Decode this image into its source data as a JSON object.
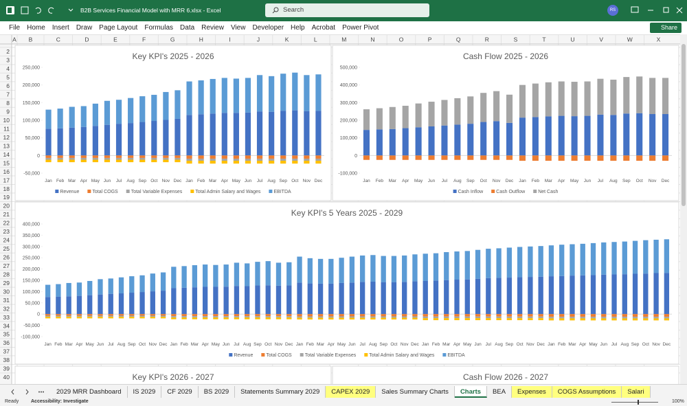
{
  "window": {
    "title": "B2B Services Financial Model with MRR 6.xlsx  -  Excel",
    "search": "Search",
    "user": "RS"
  },
  "ribbon": {
    "tabs": [
      "File",
      "Home",
      "Insert",
      "Draw",
      "Page Layout",
      "Formulas",
      "Data",
      "Review",
      "View",
      "Developer",
      "Help",
      "Acrobat",
      "Power Pivot"
    ],
    "share": "Share"
  },
  "sheet": {
    "columns": [
      "A",
      "B",
      "C",
      "D",
      "E",
      "F",
      "G",
      "H",
      "I",
      "J",
      "K",
      "L",
      "M",
      "N",
      "O",
      "P",
      "Q",
      "R",
      "S",
      "T",
      "U",
      "V",
      "W",
      "X"
    ],
    "rows": [
      2,
      3,
      4,
      5,
      6,
      7,
      8,
      9,
      10,
      11,
      12,
      13,
      14,
      15,
      16,
      17,
      18,
      19,
      20,
      21,
      22,
      23,
      24,
      25,
      26,
      27,
      28,
      29,
      30,
      31,
      32,
      33,
      34,
      35,
      36,
      37,
      38,
      39,
      40
    ],
    "charts": [
      {
        "type": "bar",
        "stacked": true,
        "title": "Key KPI's 2025 - 2026",
        "categories": [
          "Jan",
          "Feb",
          "Mar",
          "Apr",
          "May",
          "Jun",
          "Jul",
          "Aug",
          "Sep",
          "Oct",
          "Nov",
          "Dec",
          "Jan",
          "Feb",
          "Mar",
          "Apr",
          "May",
          "Jun",
          "Jul",
          "Aug",
          "Sep",
          "Oct",
          "Nov",
          "Dec"
        ],
        "series": [
          {
            "name": "Revenue",
            "color": "#4472c4",
            "values": [
              76000,
              77000,
              79000,
              81000,
              84000,
              87000,
              90000,
              92000,
              95000,
              98000,
              101000,
              104000,
              115000,
              117000,
              119000,
              121000,
              121000,
              122000,
              125000,
              124000,
              127000,
              128000,
              126000,
              127000
            ]
          },
          {
            "name": "Total COGS",
            "color": "#ed7d31",
            "values": [
              -7000,
              -7000,
              -7000,
              -7000,
              -7000,
              -7000,
              -7000,
              -7000,
              -7000,
              -7000,
              -7000,
              -7000,
              -9000,
              -9000,
              -9000,
              -9000,
              -9000,
              -9000,
              -9000,
              -9000,
              -9000,
              -9000,
              -9000,
              -9000
            ]
          },
          {
            "name": "Total Variable Expenses",
            "color": "#a5a5a5",
            "values": [
              -5000,
              -5000,
              -5000,
              -5000,
              -5000,
              -5000,
              -5000,
              -5000,
              -5000,
              -5000,
              -5000,
              -5000,
              -6000,
              -6000,
              -6000,
              -6000,
              -6000,
              -6000,
              -6000,
              -6000,
              -6000,
              -6000,
              -6000,
              -6000
            ]
          },
          {
            "name": "Total Admin Salary and Wages",
            "color": "#ffc000",
            "values": [
              -7000,
              -7000,
              -7000,
              -7000,
              -7000,
              -7000,
              -7000,
              -7000,
              -7000,
              -7000,
              -7000,
              -7000,
              -8000,
              -8000,
              -8000,
              -8000,
              -8000,
              -8000,
              -8000,
              -8000,
              -8000,
              -8000,
              -8000,
              -8000
            ]
          },
          {
            "name": "EBITDA",
            "color": "#5b9bd5",
            "values": [
              54000,
              56000,
              59000,
              59000,
              63000,
              68000,
              68000,
              71000,
              73000,
              74000,
              79000,
              81000,
              95000,
              96000,
              98000,
              99000,
              97000,
              98000,
              103000,
              101000,
              105000,
              107000,
              102000,
              103000
            ]
          }
        ],
        "ylim": [
          -50000,
          250000
        ],
        "yticks": [
          {
            "value": -50000,
            "label": "-50,000"
          },
          0,
          {
            "value": 50000,
            "label": "50,000"
          },
          {
            "value": 100000,
            "label": "100,000"
          },
          {
            "value": 150000,
            "label": "150,000"
          },
          {
            "value": 200000,
            "label": "200,000"
          },
          {
            "value": 250000,
            "label": "250,000"
          }
        ],
        "grid": false,
        "legend": "bottom"
      },
      {
        "type": "bar",
        "stacked": true,
        "title": "Cash Flow 2025 - 2026",
        "categories": [
          "Jan",
          "Feb",
          "Mar",
          "Apr",
          "May",
          "Jun",
          "Jul",
          "Aug",
          "Sep",
          "Oct",
          "Nov",
          "Dec",
          "Jan",
          "Feb",
          "Mar",
          "Apr",
          "May",
          "Jun",
          "Jul",
          "Aug",
          "Sep",
          "Oct",
          "Nov",
          "Dec"
        ],
        "series": [
          {
            "name": "Cash Inflow",
            "color": "#4472c4",
            "values": [
              145000,
              148000,
              150000,
              155000,
              160000,
              165000,
              170000,
              175000,
              180000,
              190000,
              195000,
              185000,
              215000,
              218000,
              222000,
              225000,
              223000,
              225000,
              232000,
              230000,
              238000,
              240000,
              235000,
              235000
            ]
          },
          {
            "name": "Cash Outflow",
            "color": "#ed7d31",
            "values": [
              -25000,
              -25000,
              -25000,
              -25000,
              -25000,
              -25000,
              -25000,
              -25000,
              -25000,
              -25000,
              -25000,
              -25000,
              -30000,
              -30000,
              -30000,
              -30000,
              -30000,
              -30000,
              -30000,
              -30000,
              -30000,
              -30000,
              -30000,
              -30000
            ]
          },
          {
            "name": "Net Cash",
            "color": "#a5a5a5",
            "values": [
              117000,
              120000,
              125000,
              127000,
              135000,
              140000,
              145000,
              150000,
              155000,
              165000,
              170000,
              160000,
              185000,
              190000,
              193000,
              195000,
              195000,
              195000,
              203000,
              200000,
              207000,
              208000,
              205000,
              205000
            ]
          }
        ],
        "ylim": [
          -100000,
          500000
        ],
        "yticks": [
          {
            "value": -100000,
            "label": "-100,000"
          },
          0,
          {
            "value": 100000,
            "label": "100,000"
          },
          {
            "value": 200000,
            "label": "200,000"
          },
          {
            "value": 300000,
            "label": "300,000"
          },
          {
            "value": 400000,
            "label": "400,000"
          },
          {
            "value": 500000,
            "label": "500,000"
          }
        ],
        "grid": false,
        "legend": "bottom"
      },
      {
        "type": "bar",
        "stacked": true,
        "title": "Key KPI's 5 Years 2025 - 2029",
        "categories": [
          "Jan",
          "Feb",
          "Mar",
          "Apr",
          "May",
          "Jun",
          "Jul",
          "Aug",
          "Sep",
          "Oct",
          "Nov",
          "Dec",
          "Jan",
          "Feb",
          "Mar",
          "Apr",
          "May",
          "Jun",
          "Jul",
          "Aug",
          "Sep",
          "Oct",
          "Nov",
          "Dec",
          "Jan",
          "Feb",
          "Mar",
          "Apr",
          "May",
          "Jun",
          "Jul",
          "Aug",
          "Sep",
          "Oct",
          "Nov",
          "Dec",
          "Jan",
          "Feb",
          "Mar",
          "Apr",
          "May",
          "Jun",
          "Jul",
          "Aug",
          "Sep",
          "Oct",
          "Nov",
          "Dec",
          "Jan",
          "Feb",
          "Mar",
          "Apr",
          "May",
          "Jun",
          "Jul",
          "Aug",
          "Sep",
          "Oct",
          "Nov",
          "Dec"
        ],
        "series": [
          {
            "name": "Revenue",
            "color": "#4472c4",
            "values": [
              76000,
              77000,
              79000,
              81000,
              84000,
              87000,
              90000,
              92000,
              95000,
              98000,
              101000,
              104000,
              115000,
              117000,
              119000,
              121000,
              121000,
              122000,
              125000,
              124000,
              127000,
              128000,
              126000,
              127000,
              140000,
              136000,
              135000,
              135000,
              138000,
              140000,
              143000,
              144000,
              142000,
              142000,
              143000,
              146000,
              147000,
              149000,
              151000,
              153000,
              154000,
              157000,
              160000,
              161000,
              162000,
              164000,
              165000,
              166000,
              168000,
              169000,
              171000,
              172000,
              173000,
              175000,
              176000,
              177000,
              179000,
              180000,
              182000,
              183000
            ]
          },
          {
            "name": "Total COGS",
            "color": "#ed7d31",
            "values": [
              -7000,
              -7000,
              -7000,
              -7000,
              -7000,
              -7000,
              -7000,
              -7000,
              -7000,
              -7000,
              -7000,
              -7000,
              -9000,
              -9000,
              -9000,
              -9000,
              -9000,
              -9000,
              -9000,
              -9000,
              -9000,
              -9000,
              -9000,
              -9000,
              -10000,
              -10000,
              -10000,
              -10000,
              -10000,
              -10000,
              -10000,
              -10000,
              -10000,
              -10000,
              -10000,
              -10000,
              -11000,
              -11000,
              -11000,
              -11000,
              -11000,
              -11000,
              -11000,
              -11000,
              -11000,
              -11000,
              -11000,
              -11000,
              -12000,
              -12000,
              -12000,
              -12000,
              -12000,
              -12000,
              -12000,
              -12000,
              -12000,
              -12000,
              -12000,
              -12000
            ]
          },
          {
            "name": "Total Variable Expenses",
            "color": "#a5a5a5",
            "values": [
              -5000,
              -5000,
              -5000,
              -5000,
              -5000,
              -5000,
              -5000,
              -5000,
              -5000,
              -5000,
              -5000,
              -5000,
              -6000,
              -6000,
              -6000,
              -6000,
              -6000,
              -6000,
              -6000,
              -6000,
              -6000,
              -6000,
              -6000,
              -6000,
              -6000,
              -6000,
              -6000,
              -6000,
              -6000,
              -6000,
              -6000,
              -6000,
              -6000,
              -6000,
              -6000,
              -6000,
              -7000,
              -7000,
              -7000,
              -7000,
              -7000,
              -7000,
              -7000,
              -7000,
              -7000,
              -7000,
              -7000,
              -7000,
              -7000,
              -7000,
              -7000,
              -7000,
              -7000,
              -7000,
              -7000,
              -7000,
              -7000,
              -7000,
              -7000,
              -7000
            ]
          },
          {
            "name": "Total Admin Salary and Wages",
            "color": "#ffc000",
            "values": [
              -7000,
              -7000,
              -7000,
              -7000,
              -7000,
              -7000,
              -7000,
              -7000,
              -7000,
              -7000,
              -7000,
              -7000,
              -8000,
              -8000,
              -8000,
              -8000,
              -8000,
              -8000,
              -8000,
              -8000,
              -8000,
              -8000,
              -8000,
              -8000,
              -8000,
              -8000,
              -8000,
              -8000,
              -8000,
              -8000,
              -8000,
              -8000,
              -8000,
              -8000,
              -8000,
              -8000,
              -9000,
              -9000,
              -9000,
              -9000,
              -9000,
              -9000,
              -9000,
              -9000,
              -9000,
              -9000,
              -9000,
              -9000,
              -9000,
              -9000,
              -9000,
              -9000,
              -9000,
              -9000,
              -9000,
              -9000,
              -9000,
              -9000,
              -9000,
              -9000
            ]
          },
          {
            "name": "EBITDA",
            "color": "#5b9bd5",
            "values": [
              54000,
              56000,
              59000,
              59000,
              63000,
              68000,
              68000,
              71000,
              73000,
              74000,
              79000,
              81000,
              95000,
              96000,
              98000,
              99000,
              97000,
              98000,
              103000,
              101000,
              105000,
              107000,
              102000,
              103000,
              115000,
              112000,
              110000,
              110000,
              112000,
              115000,
              117000,
              118000,
              116000,
              116000,
              117000,
              119000,
              121000,
              121000,
              124000,
              125000,
              126000,
              128000,
              130000,
              131000,
              133000,
              134000,
              135000,
              136000,
              137000,
              139000,
              139000,
              140000,
              142000,
              143000,
              144000,
              145000,
              146000,
              148000,
              148000,
              149000
            ]
          }
        ],
        "ylim": [
          -100000,
          400000
        ],
        "yticks": [
          {
            "value": -100000,
            "label": "-100,000"
          },
          {
            "value": -50000,
            "label": "-50,000"
          },
          0,
          {
            "value": 50000,
            "label": "50,000"
          },
          {
            "value": 100000,
            "label": "100,000"
          },
          {
            "value": 150000,
            "label": "150,000"
          },
          {
            "value": 200000,
            "label": "200,000"
          },
          {
            "value": 250000,
            "label": "250,000"
          },
          {
            "value": 300000,
            "label": "300,000"
          },
          {
            "value": 350000,
            "label": "350,000"
          },
          {
            "value": 400000,
            "label": "400,000"
          }
        ],
        "grid": false,
        "legend": "bottom"
      },
      {
        "title": "Key KPI's 2026 - 2027"
      },
      {
        "title": "Cash Flow 2026 - 2027"
      }
    ]
  },
  "sheets": [
    {
      "name": "2029 MRR Dashboard"
    },
    {
      "name": "IS 2029"
    },
    {
      "name": "CF 2029"
    },
    {
      "name": "BS 2029"
    },
    {
      "name": "Statements Summary 2029"
    },
    {
      "name": "CAPEX 2029",
      "color": "#ffff7f"
    },
    {
      "name": "Sales Summary Charts"
    },
    {
      "name": "Charts",
      "active": true
    },
    {
      "name": "BEA"
    },
    {
      "name": "Expenses",
      "color": "#ffff7f"
    },
    {
      "name": "COGS Assumptions",
      "color": "#ffff7f"
    },
    {
      "name": "Salari",
      "color": "#ffff7f"
    }
  ],
  "status": {
    "ready": "Ready",
    "accessibility": "Accessibility: Investigate",
    "zoom": "100%"
  }
}
